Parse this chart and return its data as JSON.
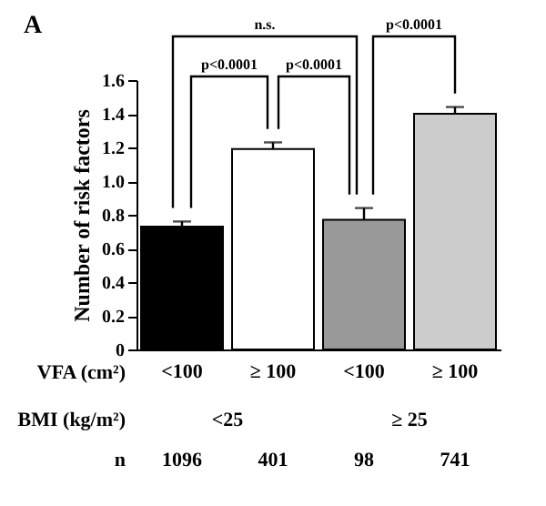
{
  "chart_data": {
    "type": "bar",
    "title": "A",
    "ylabel": "Number of risk factors",
    "xlabel": "VFA (cm²)",
    "categories": [
      "<100",
      "≥ 100",
      "<100",
      "≥ 100"
    ],
    "values": [
      0.73,
      1.19,
      0.77,
      1.4
    ],
    "errors": [
      0.03,
      0.04,
      0.07,
      0.04
    ],
    "colors": [
      "#000000",
      "#ffffff",
      "#999999",
      "#cccccc"
    ],
    "ylim": [
      0,
      1.6
    ],
    "yticks": [
      0,
      0.2,
      0.4,
      0.6,
      0.8,
      {
        "value": 1,
        "label": "1.0"
      },
      1.2,
      1.4,
      1.6
    ],
    "grid": false,
    "legend": false,
    "annotations": [
      "n.s.",
      "p<0.0001",
      "p<0.0001",
      "p<0.0001",
      "BMI (kg/m²)",
      "<25",
      "≥ 25",
      "n",
      "1096",
      "401",
      "98",
      "741"
    ]
  }
}
